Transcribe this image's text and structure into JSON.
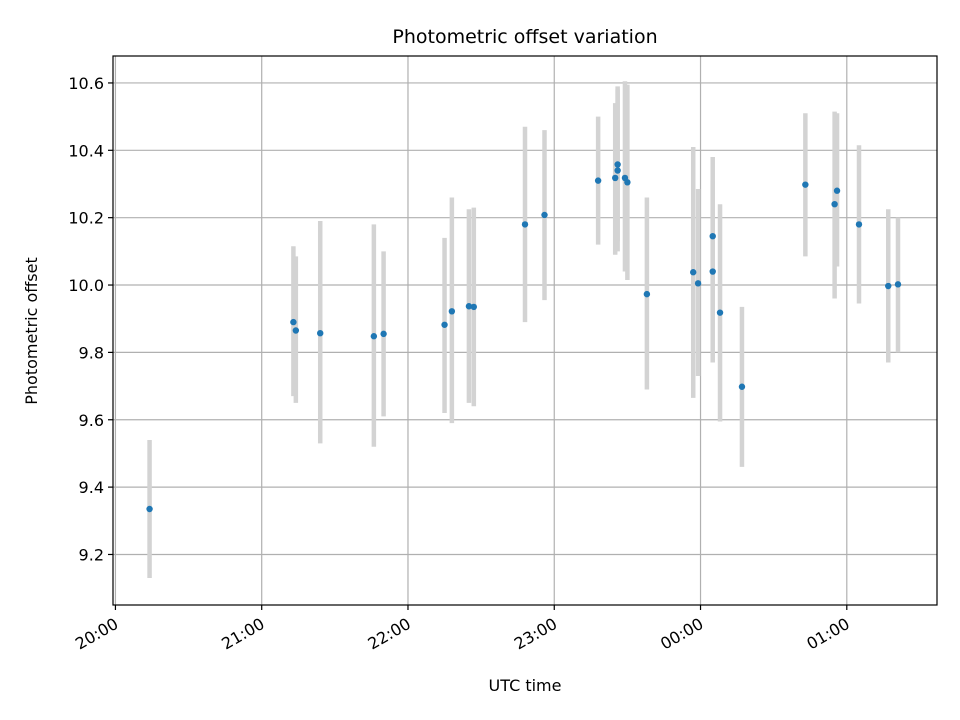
{
  "colors": {
    "point": "#1f77b4",
    "errorbar": "#d3d3d3",
    "grid": "#b0b0b0",
    "frame": "#000000"
  },
  "chart_data": {
    "type": "scatter",
    "title": "Photometric offset variation",
    "xlabel": "UTC time",
    "ylabel": "Photometric offset",
    "grid": true,
    "x_tick_labels": [
      "20:00",
      "21:00",
      "22:00",
      "23:00",
      "00:00",
      "01:00"
    ],
    "y_tick_labels": [
      "9.2",
      "9.4",
      "9.6",
      "9.8",
      "10.0",
      "10.2",
      "10.4",
      "10.6"
    ],
    "y_ticks": [
      9.2,
      9.4,
      9.6,
      9.8,
      10.0,
      10.2,
      10.4,
      10.6
    ],
    "ylim": [
      9.05,
      10.68
    ],
    "xlim": [
      "19:59",
      "01:37"
    ],
    "series": [
      {
        "points": [
          {
            "x": "20:14",
            "y": 9.335,
            "yerr_low": 9.13,
            "yerr_high": 9.54
          },
          {
            "x": "21:13",
            "y": 9.89,
            "yerr_low": 9.67,
            "yerr_high": 10.115
          },
          {
            "x": "21:14",
            "y": 9.865,
            "yerr_low": 9.65,
            "yerr_high": 10.085
          },
          {
            "x": "21:24",
            "y": 9.857,
            "yerr_low": 9.53,
            "yerr_high": 10.19
          },
          {
            "x": "21:46",
            "y": 9.848,
            "yerr_low": 9.52,
            "yerr_high": 10.18
          },
          {
            "x": "21:50",
            "y": 9.855,
            "yerr_low": 9.61,
            "yerr_high": 10.1
          },
          {
            "x": "22:15",
            "y": 9.882,
            "yerr_low": 9.62,
            "yerr_high": 10.14
          },
          {
            "x": "22:18",
            "y": 9.922,
            "yerr_low": 9.59,
            "yerr_high": 10.26
          },
          {
            "x": "22:25",
            "y": 9.937,
            "yerr_low": 9.65,
            "yerr_high": 10.225
          },
          {
            "x": "22:27",
            "y": 9.935,
            "yerr_low": 9.64,
            "yerr_high": 10.23
          },
          {
            "x": "22:48",
            "y": 10.18,
            "yerr_low": 9.89,
            "yerr_high": 10.47
          },
          {
            "x": "22:56",
            "y": 10.208,
            "yerr_low": 9.955,
            "yerr_high": 10.46
          },
          {
            "x": "23:18",
            "y": 10.31,
            "yerr_low": 10.12,
            "yerr_high": 10.5
          },
          {
            "x": "23:25",
            "y": 10.318,
            "yerr_low": 10.09,
            "yerr_high": 10.54
          },
          {
            "x": "23:26",
            "y": 10.34,
            "yerr_low": 10.1,
            "yerr_high": 10.58
          },
          {
            "x": "23:26",
            "y": 10.358,
            "yerr_low": 10.13,
            "yerr_high": 10.59
          },
          {
            "x": "23:29",
            "y": 10.318,
            "yerr_low": 10.04,
            "yerr_high": 10.605
          },
          {
            "x": "23:30",
            "y": 10.305,
            "yerr_low": 10.015,
            "yerr_high": 10.595
          },
          {
            "x": "23:38",
            "y": 9.973,
            "yerr_low": 9.69,
            "yerr_high": 10.26
          },
          {
            "x": "23:57",
            "y": 10.038,
            "yerr_low": 9.665,
            "yerr_high": 10.41
          },
          {
            "x": "23:59",
            "y": 10.005,
            "yerr_low": 9.73,
            "yerr_high": 10.285
          },
          {
            "x": "00:05",
            "y": 10.145,
            "yerr_low": 9.91,
            "yerr_high": 10.38
          },
          {
            "x": "00:05",
            "y": 10.04,
            "yerr_low": 9.77,
            "yerr_high": 10.31
          },
          {
            "x": "00:08",
            "y": 9.918,
            "yerr_low": 9.595,
            "yerr_high": 10.24
          },
          {
            "x": "00:17",
            "y": 9.698,
            "yerr_low": 9.46,
            "yerr_high": 9.935
          },
          {
            "x": "00:43",
            "y": 10.298,
            "yerr_low": 10.085,
            "yerr_high": 10.51
          },
          {
            "x": "00:55",
            "y": 10.24,
            "yerr_low": 9.96,
            "yerr_high": 10.515
          },
          {
            "x": "00:56",
            "y": 10.28,
            "yerr_low": 10.055,
            "yerr_high": 10.51
          },
          {
            "x": "01:05",
            "y": 10.18,
            "yerr_low": 9.945,
            "yerr_high": 10.415
          },
          {
            "x": "01:17",
            "y": 9.997,
            "yerr_low": 9.77,
            "yerr_high": 10.225
          },
          {
            "x": "01:21",
            "y": 10.002,
            "yerr_low": 9.8,
            "yerr_high": 10.2
          }
        ]
      }
    ]
  }
}
